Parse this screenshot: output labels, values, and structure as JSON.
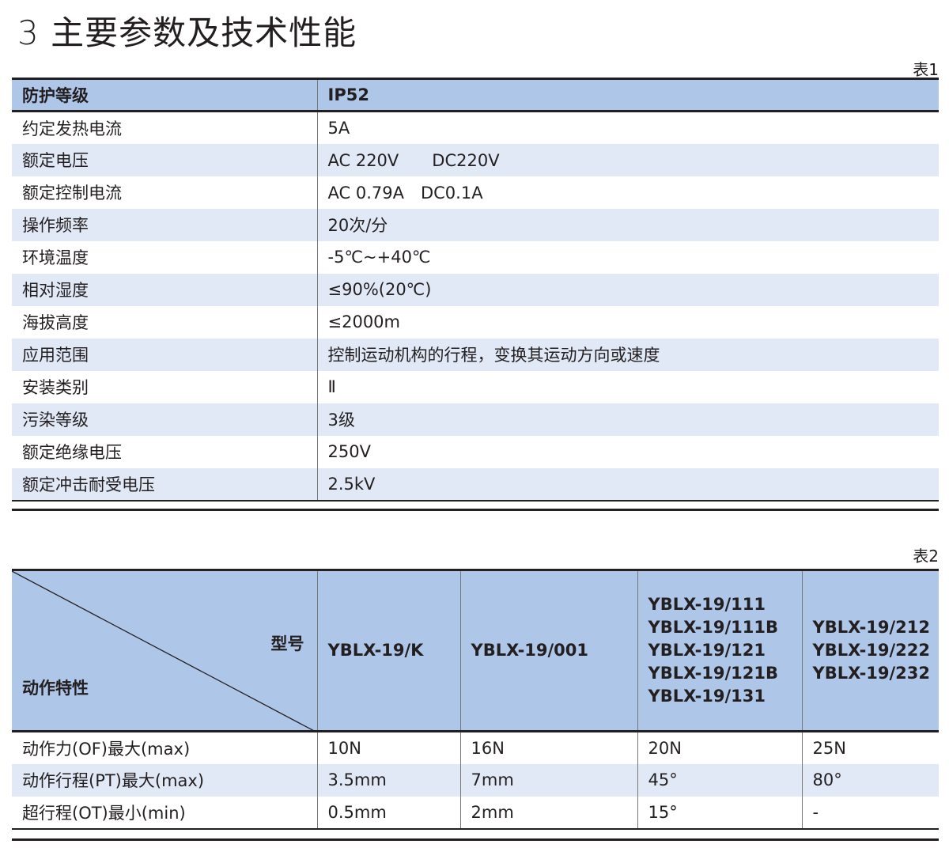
{
  "title": "3 主要参数及技术性能",
  "table1": {
    "caption": "表1",
    "header": [
      "防护等级",
      "IP52"
    ],
    "rows": [
      [
        "约定发热电流",
        "5A"
      ],
      [
        "额定电压",
        "AC 220V　　DC220V"
      ],
      [
        "额定控制电流",
        "AC 0.79A　DC0.1A"
      ],
      [
        "操作频率",
        "20次/分"
      ],
      [
        "环境温度",
        "-5℃~+40℃"
      ],
      [
        "相对湿度",
        "≤90%(20℃)"
      ],
      [
        "海拔高度",
        "≤2000m"
      ],
      [
        "应用范围",
        "控制运动机构的行程，变换其运动方向或速度"
      ],
      [
        "安装类别",
        "Ⅱ"
      ],
      [
        "污染等级",
        "3级"
      ],
      [
        "额定绝缘电压",
        "250V"
      ],
      [
        "额定冲击耐受电压",
        "2.5kV"
      ]
    ]
  },
  "table2": {
    "caption": "表2",
    "corner_top": "型号",
    "corner_bottom": "动作特性",
    "models": [
      [
        "YBLX-19/K"
      ],
      [
        "YBLX-19/001"
      ],
      [
        "YBLX-19/111",
        "YBLX-19/111B",
        "YBLX-19/121",
        "YBLX-19/121B",
        "YBLX-19/131"
      ],
      [
        "YBLX-19/212",
        "YBLX-19/222",
        "YBLX-19/232"
      ]
    ],
    "rows": [
      [
        "动作力(OF)最大(max)",
        "10N",
        "16N",
        "20N",
        "25N"
      ],
      [
        "动作行程(PT)最大(max)",
        "3.5mm",
        "7mm",
        "45°",
        "80°"
      ],
      [
        "超行程(OT)最小(min)",
        "0.5mm",
        "2mm",
        "15°",
        "-"
      ]
    ]
  }
}
